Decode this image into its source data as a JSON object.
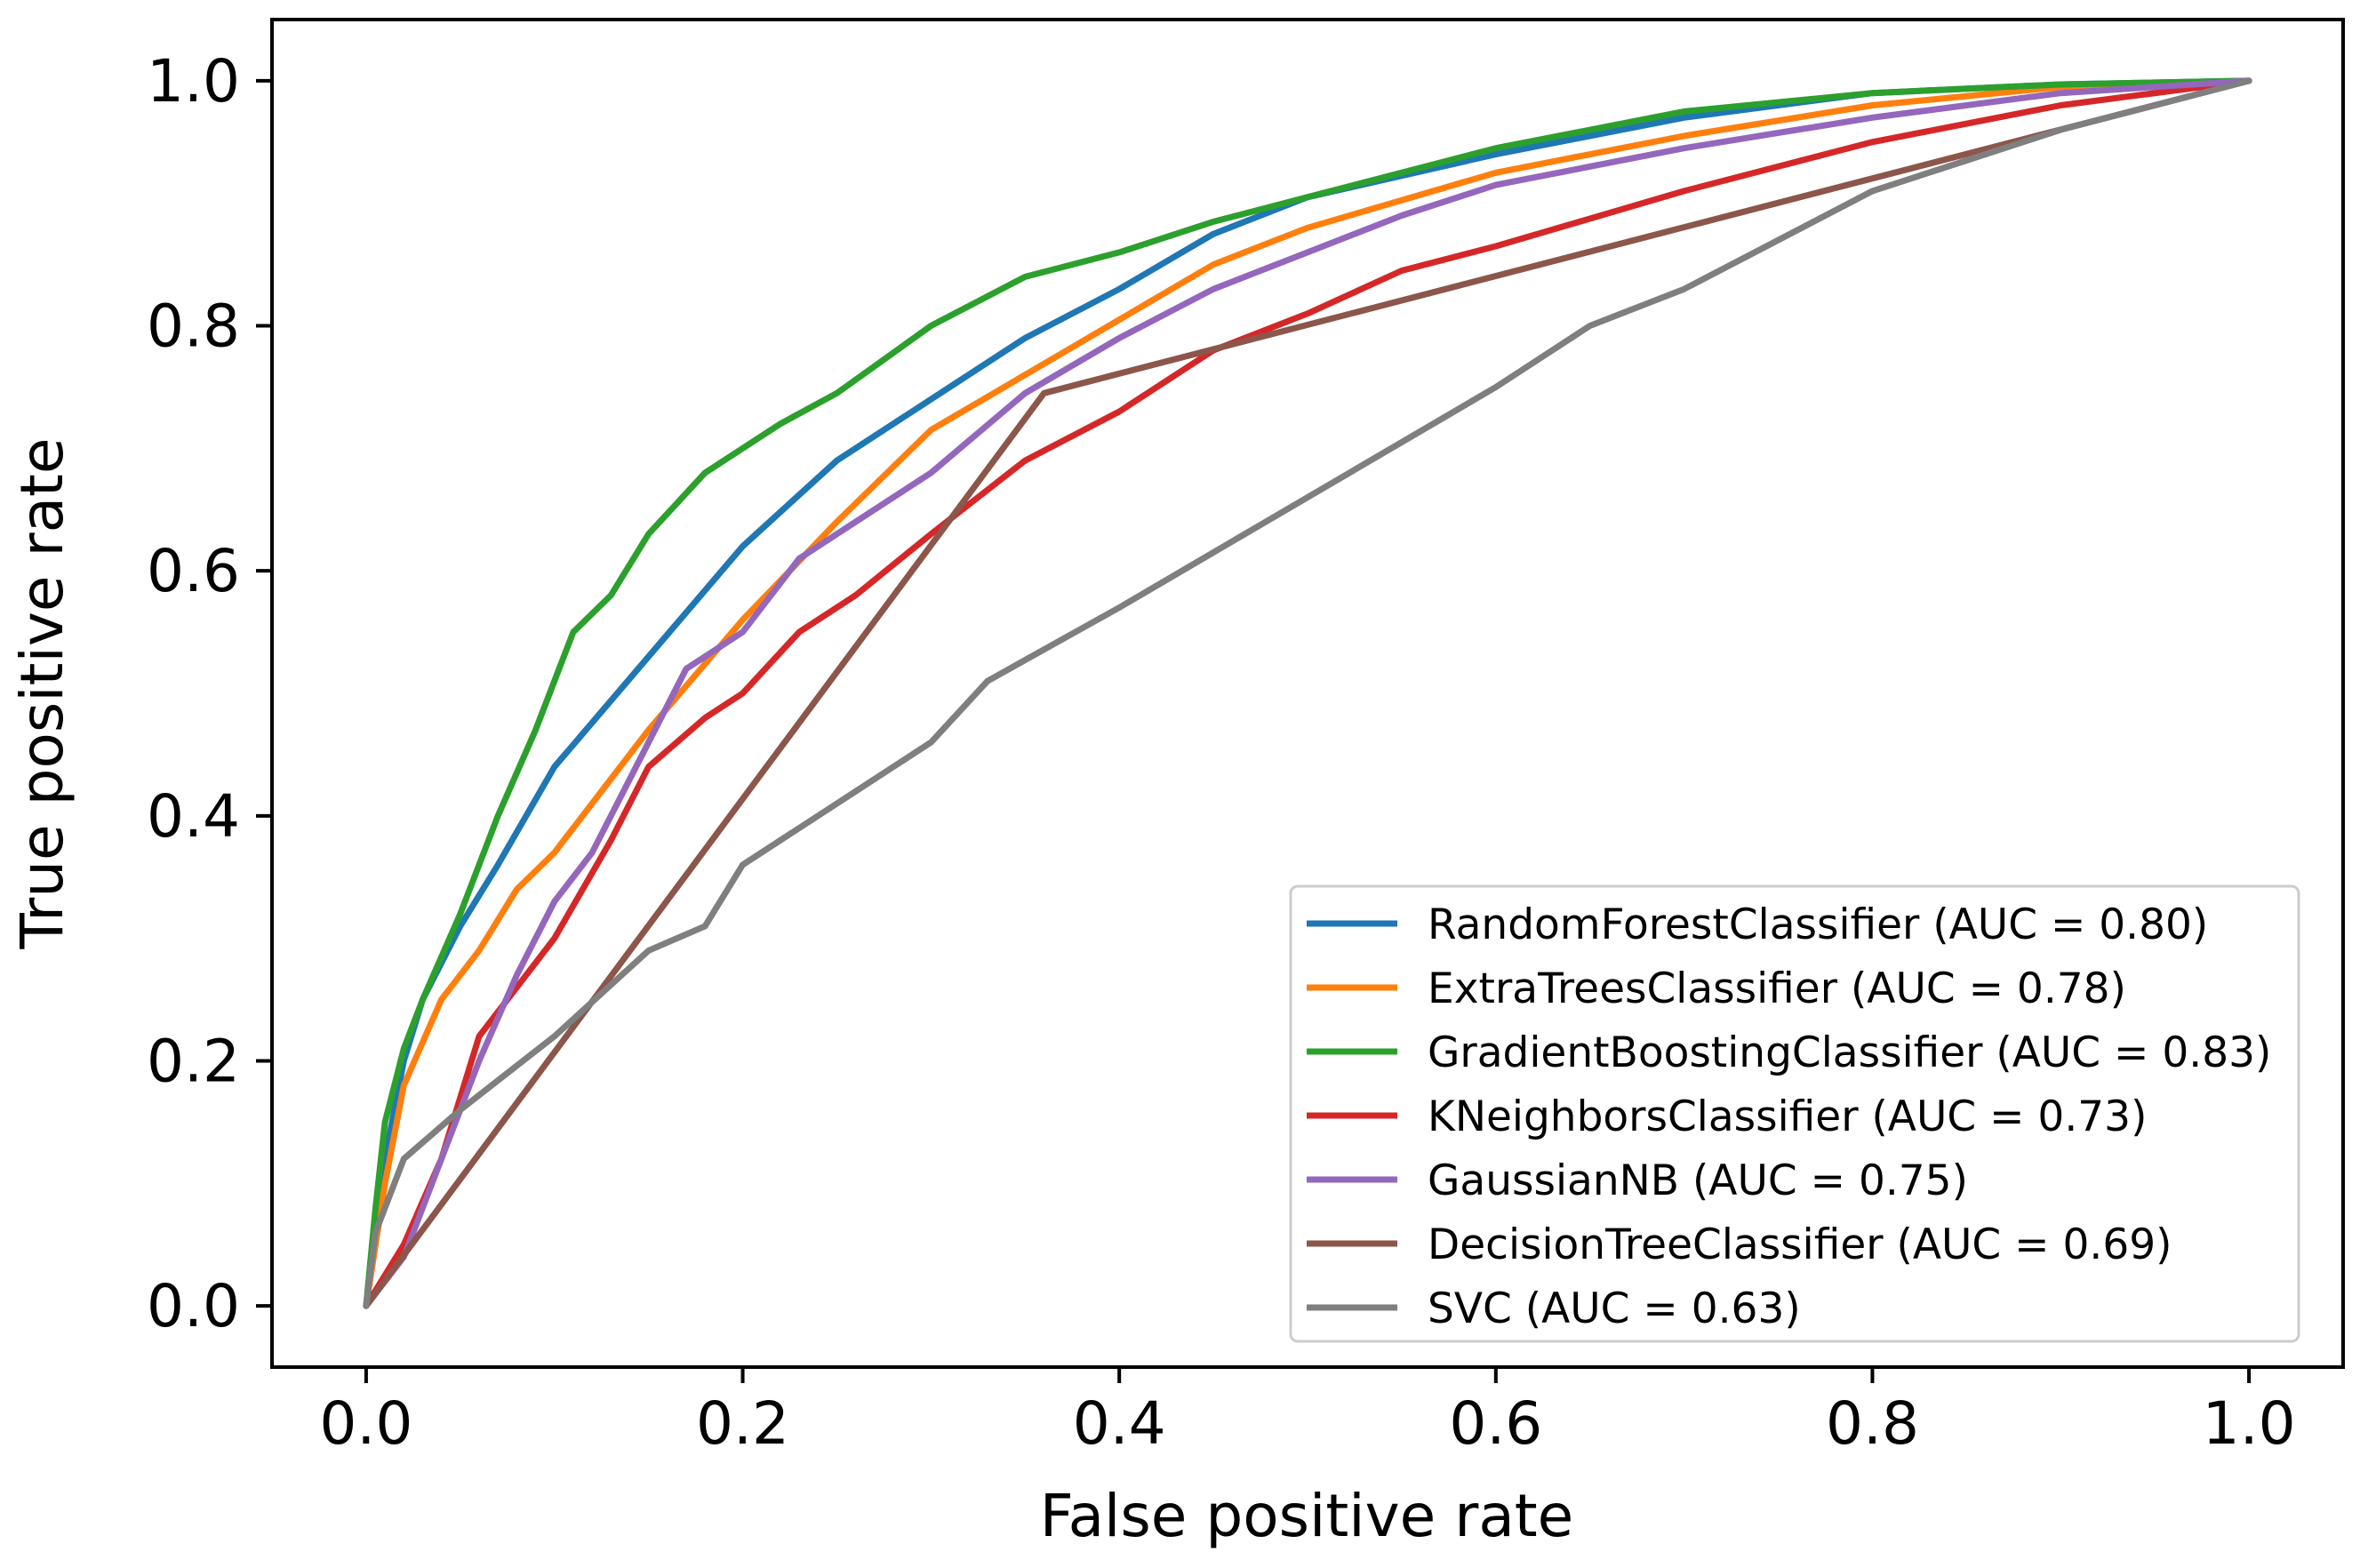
{
  "chart_data": {
    "type": "line",
    "title": "",
    "xlabel": "False positive rate",
    "ylabel": "True positive rate",
    "xlim": [
      -0.05,
      1.05
    ],
    "ylim": [
      -0.05,
      1.05
    ],
    "xticks": [
      "0.0",
      "0.2",
      "0.4",
      "0.6",
      "0.8",
      "1.0"
    ],
    "yticks": [
      "0.0",
      "0.2",
      "0.4",
      "0.6",
      "0.8",
      "1.0"
    ],
    "xtick_values": [
      0.0,
      0.2,
      0.4,
      0.6,
      0.8,
      1.0
    ],
    "ytick_values": [
      0.0,
      0.2,
      0.4,
      0.6,
      0.8,
      1.0
    ],
    "grid": false,
    "legend_position": "lower-right",
    "series": [
      {
        "name": "RandomForestClassifier (AUC = 0.80)",
        "color": "#1f77b4",
        "points": [
          [
            0,
            0
          ],
          [
            0.005,
            0.06
          ],
          [
            0.01,
            0.12
          ],
          [
            0.02,
            0.2
          ],
          [
            0.03,
            0.25
          ],
          [
            0.05,
            0.31
          ],
          [
            0.07,
            0.36
          ],
          [
            0.1,
            0.44
          ],
          [
            0.15,
            0.53
          ],
          [
            0.2,
            0.62
          ],
          [
            0.25,
            0.69
          ],
          [
            0.3,
            0.74
          ],
          [
            0.35,
            0.79
          ],
          [
            0.4,
            0.83
          ],
          [
            0.45,
            0.875
          ],
          [
            0.5,
            0.905
          ],
          [
            0.6,
            0.94
          ],
          [
            0.7,
            0.97
          ],
          [
            0.8,
            0.99
          ],
          [
            0.9,
            0.997
          ],
          [
            1.0,
            1.0
          ]
        ]
      },
      {
        "name": "ExtraTreesClassifier (AUC = 0.78)",
        "color": "#ff7f0e",
        "points": [
          [
            0,
            0
          ],
          [
            0.005,
            0.05
          ],
          [
            0.01,
            0.1
          ],
          [
            0.02,
            0.18
          ],
          [
            0.04,
            0.25
          ],
          [
            0.06,
            0.29
          ],
          [
            0.08,
            0.34
          ],
          [
            0.1,
            0.37
          ],
          [
            0.15,
            0.47
          ],
          [
            0.2,
            0.56
          ],
          [
            0.25,
            0.64
          ],
          [
            0.3,
            0.715
          ],
          [
            0.35,
            0.76
          ],
          [
            0.4,
            0.805
          ],
          [
            0.45,
            0.85
          ],
          [
            0.5,
            0.88
          ],
          [
            0.6,
            0.925
          ],
          [
            0.7,
            0.955
          ],
          [
            0.8,
            0.98
          ],
          [
            0.9,
            0.995
          ],
          [
            1.0,
            1.0
          ]
        ]
      },
      {
        "name": "GradientBoostingClassifier (AUC = 0.83)",
        "color": "#2ca02c",
        "points": [
          [
            0,
            0
          ],
          [
            0.005,
            0.08
          ],
          [
            0.01,
            0.15
          ],
          [
            0.02,
            0.21
          ],
          [
            0.03,
            0.25
          ],
          [
            0.05,
            0.32
          ],
          [
            0.07,
            0.4
          ],
          [
            0.09,
            0.47
          ],
          [
            0.11,
            0.55
          ],
          [
            0.13,
            0.58
          ],
          [
            0.15,
            0.63
          ],
          [
            0.18,
            0.68
          ],
          [
            0.22,
            0.72
          ],
          [
            0.25,
            0.745
          ],
          [
            0.3,
            0.8
          ],
          [
            0.35,
            0.84
          ],
          [
            0.4,
            0.86
          ],
          [
            0.45,
            0.885
          ],
          [
            0.5,
            0.905
          ],
          [
            0.6,
            0.945
          ],
          [
            0.7,
            0.975
          ],
          [
            0.8,
            0.99
          ],
          [
            0.9,
            0.997
          ],
          [
            1.0,
            1.0
          ]
        ]
      },
      {
        "name": "KNeighborsClassifier (AUC = 0.73)",
        "color": "#d62728",
        "points": [
          [
            0,
            0
          ],
          [
            0.02,
            0.05
          ],
          [
            0.04,
            0.12
          ],
          [
            0.06,
            0.22
          ],
          [
            0.08,
            0.26
          ],
          [
            0.1,
            0.3
          ],
          [
            0.13,
            0.38
          ],
          [
            0.15,
            0.44
          ],
          [
            0.18,
            0.48
          ],
          [
            0.2,
            0.5
          ],
          [
            0.23,
            0.55
          ],
          [
            0.26,
            0.58
          ],
          [
            0.3,
            0.63
          ],
          [
            0.35,
            0.69
          ],
          [
            0.4,
            0.73
          ],
          [
            0.45,
            0.78
          ],
          [
            0.5,
            0.81
          ],
          [
            0.55,
            0.845
          ],
          [
            0.6,
            0.865
          ],
          [
            0.7,
            0.91
          ],
          [
            0.8,
            0.95
          ],
          [
            0.9,
            0.98
          ],
          [
            1.0,
            1.0
          ]
        ]
      },
      {
        "name": "GaussianNB (AUC = 0.75)",
        "color": "#9467bd",
        "points": [
          [
            0,
            0
          ],
          [
            0.02,
            0.04
          ],
          [
            0.04,
            0.12
          ],
          [
            0.06,
            0.2
          ],
          [
            0.08,
            0.27
          ],
          [
            0.1,
            0.33
          ],
          [
            0.12,
            0.37
          ],
          [
            0.14,
            0.43
          ],
          [
            0.17,
            0.52
          ],
          [
            0.2,
            0.55
          ],
          [
            0.23,
            0.61
          ],
          [
            0.26,
            0.64
          ],
          [
            0.3,
            0.68
          ],
          [
            0.35,
            0.745
          ],
          [
            0.4,
            0.79
          ],
          [
            0.45,
            0.83
          ],
          [
            0.5,
            0.86
          ],
          [
            0.55,
            0.89
          ],
          [
            0.6,
            0.915
          ],
          [
            0.7,
            0.945
          ],
          [
            0.8,
            0.97
          ],
          [
            0.9,
            0.99
          ],
          [
            1.0,
            1.0
          ]
        ]
      },
      {
        "name": "DecisionTreeClassifier (AUC = 0.69)",
        "color": "#8c564b",
        "points": [
          [
            0,
            0
          ],
          [
            0.36,
            0.745
          ],
          [
            1.0,
            1.0
          ]
        ]
      },
      {
        "name": "SVC (AUC = 0.63)",
        "color": "#7f7f7f",
        "points": [
          [
            0,
            0
          ],
          [
            0.005,
            0.06
          ],
          [
            0.02,
            0.12
          ],
          [
            0.05,
            0.16
          ],
          [
            0.1,
            0.22
          ],
          [
            0.15,
            0.29
          ],
          [
            0.18,
            0.31
          ],
          [
            0.2,
            0.36
          ],
          [
            0.25,
            0.41
          ],
          [
            0.3,
            0.46
          ],
          [
            0.33,
            0.51
          ],
          [
            0.4,
            0.57
          ],
          [
            0.5,
            0.66
          ],
          [
            0.6,
            0.75
          ],
          [
            0.65,
            0.8
          ],
          [
            0.7,
            0.83
          ],
          [
            0.75,
            0.87
          ],
          [
            0.8,
            0.91
          ],
          [
            0.85,
            0.935
          ],
          [
            0.9,
            0.96
          ],
          [
            0.95,
            0.98
          ],
          [
            1.0,
            1.0
          ]
        ]
      }
    ]
  }
}
